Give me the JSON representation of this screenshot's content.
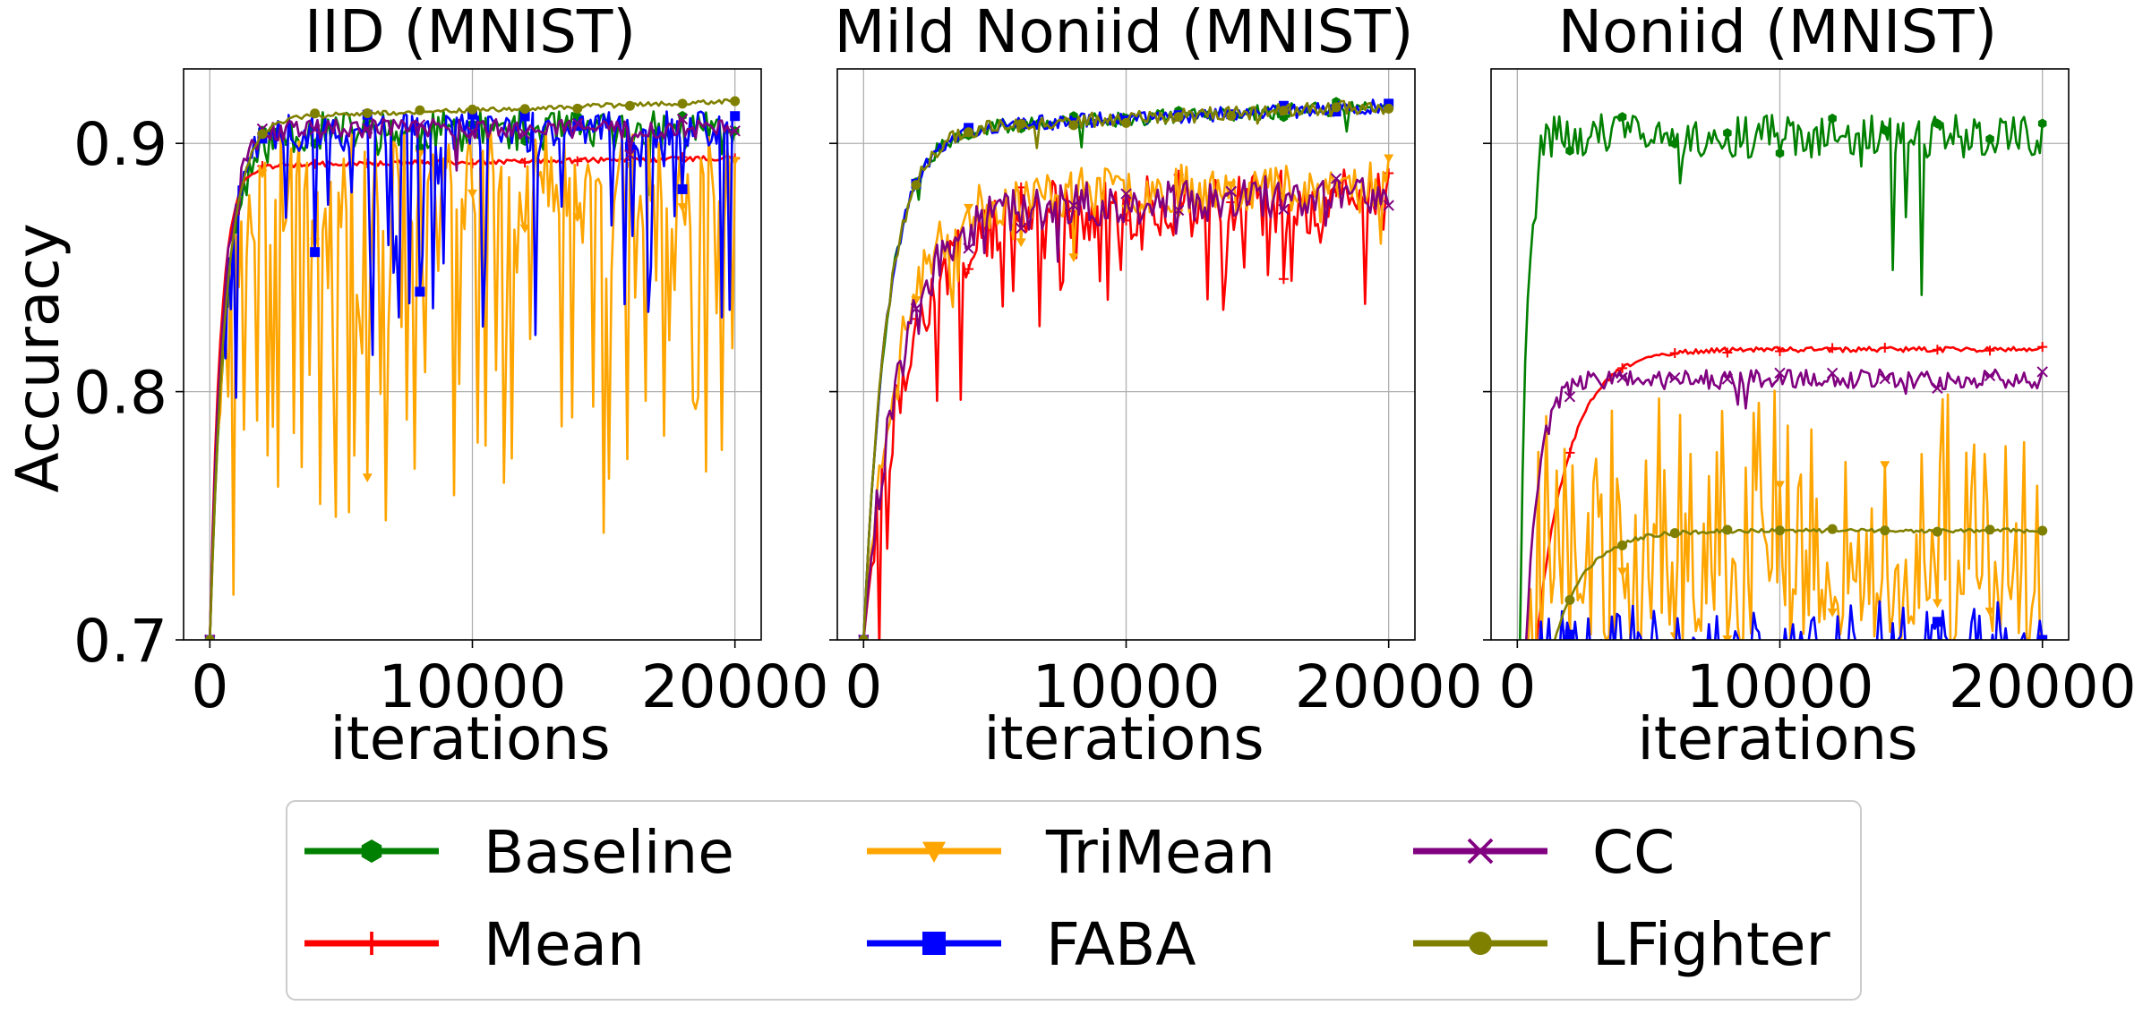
{
  "ylabel": "Accuracy",
  "legend": {
    "placement": "bottom-center",
    "columns": 3,
    "entries": [
      {
        "key": "baseline",
        "label": "Baseline",
        "color": "#008000",
        "marker": "hexagon"
      },
      {
        "key": "mean",
        "label": "Mean",
        "color": "#ff0000",
        "marker": "plus"
      },
      {
        "key": "trimean",
        "label": "TriMean",
        "color": "#ffa500",
        "marker": "triangle-down"
      },
      {
        "key": "faba",
        "label": "FABA",
        "color": "#0000ff",
        "marker": "square"
      },
      {
        "key": "cc",
        "label": "CC",
        "color": "#800080",
        "marker": "x"
      },
      {
        "key": "lfighter",
        "label": "LFighter",
        "color": "#808000",
        "marker": "circle"
      }
    ]
  },
  "chart_data": [
    {
      "type": "line",
      "title": "IID (MNIST)",
      "xlabel": "iterations",
      "ylabel": "Accuracy",
      "xlim": [
        -1000,
        21000
      ],
      "ylim": [
        0.7,
        0.93
      ],
      "xticks": [
        0,
        10000,
        20000
      ],
      "xtick_labels": [
        "0",
        "10000",
        "20000"
      ],
      "yticks": [
        0.7,
        0.8,
        0.9
      ],
      "ytick_labels": [
        "0.7",
        "0.8",
        "0.9"
      ],
      "grid": true,
      "series": [
        {
          "name": "Baseline",
          "color": "#008000",
          "start": 0.7,
          "plateau": 0.905,
          "rate": 600,
          "noise": 0.008,
          "spikes": 0.02,
          "spikeDepth": 0.02,
          "end": 0.905,
          "seed": 11
        },
        {
          "name": "Mean",
          "color": "#ff0000",
          "start": 0.7,
          "plateau": 0.891,
          "rate": 400,
          "noise": 0.001,
          "spikes": 0,
          "spikeDepth": 0,
          "end": 0.894,
          "drift": 0.003,
          "seed": 12
        },
        {
          "name": "TriMean",
          "color": "#ffa500",
          "start": 0.7,
          "plateau": 0.885,
          "rate": 500,
          "noise": 0.02,
          "spikes": 0.35,
          "spikeDepth": 0.06,
          "end": 0.893,
          "seed": 13
        },
        {
          "name": "FABA",
          "color": "#0000ff",
          "start": 0.7,
          "plateau": 0.905,
          "rate": 500,
          "noise": 0.008,
          "spikes": 0.18,
          "spikeDepth": 0.04,
          "end": 0.911,
          "seed": 14
        },
        {
          "name": "CC",
          "color": "#800080",
          "start": 0.7,
          "plateau": 0.906,
          "rate": 500,
          "noise": 0.004,
          "spikes": 0.02,
          "spikeDepth": 0.01,
          "end": 0.905,
          "seed": 15
        },
        {
          "name": "LFighter",
          "color": "#808000",
          "start": 0.7,
          "plateau": 0.91,
          "rate": 600,
          "noise": 0.001,
          "spikes": 0,
          "spikeDepth": 0,
          "end": 0.917,
          "drift": 0.007,
          "seed": 16
        }
      ]
    },
    {
      "type": "line",
      "title": "Mild Noniid (MNIST)",
      "xlabel": "iterations",
      "ylabel": "",
      "xlim": [
        -1000,
        21000
      ],
      "ylim": [
        0.7,
        0.93
      ],
      "xticks": [
        0,
        10000,
        20000
      ],
      "xtick_labels": [
        "0",
        "10000",
        "20000"
      ],
      "yticks": [
        0.7,
        0.8,
        0.9
      ],
      "ytick_labels": [
        "",
        "",
        ""
      ],
      "grid": true,
      "series": [
        {
          "name": "Baseline",
          "color": "#008000",
          "start": 0.7,
          "plateau": 0.905,
          "rate": 900,
          "noise": 0.003,
          "spikes": 0.01,
          "spikeDepth": 0.006,
          "end": 0.914,
          "drift": 0.01,
          "seed": 21
        },
        {
          "name": "Mean",
          "color": "#ff0000",
          "start": 0.7,
          "plateau": 0.872,
          "rate": 1600,
          "noise": 0.013,
          "spikes": 0.15,
          "spikeDepth": 0.025,
          "end": 0.888,
          "drift": 0.005,
          "seed": 22
        },
        {
          "name": "TriMean",
          "color": "#ffa500",
          "start": 0.7,
          "plateau": 0.878,
          "rate": 1300,
          "noise": 0.01,
          "spikes": 0.05,
          "spikeDepth": 0.012,
          "end": 0.894,
          "drift": 0.006,
          "seed": 23
        },
        {
          "name": "FABA",
          "color": "#0000ff",
          "start": 0.7,
          "plateau": 0.905,
          "rate": 900,
          "noise": 0.003,
          "spikes": 0.01,
          "spikeDepth": 0.006,
          "end": 0.916,
          "drift": 0.01,
          "seed": 24
        },
        {
          "name": "CC",
          "color": "#800080",
          "start": 0.7,
          "plateau": 0.874,
          "rate": 1400,
          "noise": 0.009,
          "spikes": 0.03,
          "spikeDepth": 0.01,
          "end": 0.875,
          "drift": 0.005,
          "seed": 25
        },
        {
          "name": "LFighter",
          "color": "#808000",
          "start": 0.7,
          "plateau": 0.905,
          "rate": 900,
          "noise": 0.003,
          "spikes": 0.01,
          "spikeDepth": 0.006,
          "end": 0.914,
          "drift": 0.01,
          "seed": 26
        }
      ]
    },
    {
      "type": "line",
      "title": "Noniid (MNIST)",
      "xlabel": "iterations",
      "ylabel": "",
      "xlim": [
        -1000,
        21000
      ],
      "ylim": [
        0.7,
        0.93
      ],
      "xticks": [
        0,
        10000,
        20000
      ],
      "xtick_labels": [
        "0",
        "10000",
        "20000"
      ],
      "yticks": [
        0.7,
        0.8,
        0.9
      ],
      "ytick_labels": [
        "",
        "",
        ""
      ],
      "grid": true,
      "series": [
        {
          "name": "Baseline",
          "color": "#008000",
          "start": 0.6,
          "plateau": 0.903,
          "rate": 250,
          "noise": 0.009,
          "spikes": 0.07,
          "spikeDepth": 0.03,
          "end": 0.908,
          "seed": 31
        },
        {
          "name": "Mean",
          "color": "#ff0000",
          "start": 0.6,
          "plateau": 0.817,
          "rate": 1200,
          "noise": 0.001,
          "spikes": 0,
          "spikeDepth": 0,
          "end": 0.818,
          "seed": 32
        },
        {
          "name": "TriMean",
          "color": "#ffa500",
          "start": 0.6,
          "plateau": 0.715,
          "rate": 400,
          "noise": 0.02,
          "spikes": 0.4,
          "spikeDepth": -0.035,
          "end": 0.7,
          "seed": 33
        },
        {
          "name": "FABA",
          "color": "#0000ff",
          "start": 0.6,
          "plateau": 0.696,
          "rate": 300,
          "noise": 0.004,
          "spikes": 0.3,
          "spikeDepth": -0.008,
          "end": 0.7,
          "seed": 34
        },
        {
          "name": "CC",
          "color": "#800080",
          "start": 0.6,
          "plateau": 0.805,
          "rate": 500,
          "noise": 0.004,
          "spikes": 0.03,
          "spikeDepth": 0.006,
          "end": 0.808,
          "seed": 35
        },
        {
          "name": "LFighter",
          "color": "#808000",
          "start": 0.6,
          "plateau": 0.744,
          "rate": 1200,
          "noise": 0.0008,
          "spikes": 0,
          "spikeDepth": 0,
          "end": 0.744,
          "seed": 36
        }
      ]
    }
  ]
}
